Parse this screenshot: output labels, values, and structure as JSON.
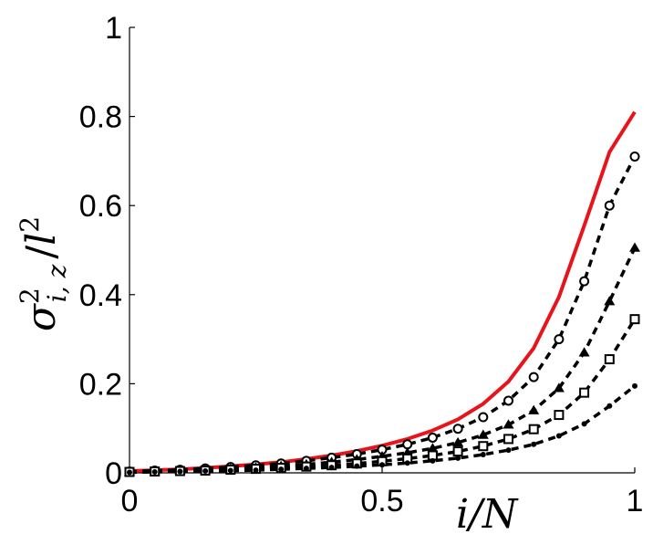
{
  "chart_data": {
    "type": "line",
    "title": "",
    "xlabel": "i/N",
    "ylabel": "σ²_{i,z} / l²",
    "ylabel_parts": {
      "sigma": "σ",
      "sup": "2",
      "sub": "i, z",
      "slash": "/",
      "l": "l",
      "lsup": "2"
    },
    "xlim": [
      0,
      1
    ],
    "ylim": [
      0,
      1
    ],
    "x_ticks": [
      "0",
      "0.5",
      "1"
    ],
    "y_ticks": [
      "0",
      "0.2",
      "0.4",
      "0.6",
      "0.8",
      "1"
    ],
    "grid": false,
    "legend": "none",
    "x": [
      0,
      0.05,
      0.1,
      0.15,
      0.2,
      0.25,
      0.3,
      0.35,
      0.4,
      0.45,
      0.5,
      0.55,
      0.6,
      0.65,
      0.7,
      0.75,
      0.8,
      0.85,
      0.9,
      0.95,
      1.0
    ],
    "series": [
      {
        "style": "solid",
        "color": "#e8141b",
        "marker": "none",
        "values": [
          0.004,
          0.006,
          0.008,
          0.011,
          0.015,
          0.019,
          0.024,
          0.031,
          0.039,
          0.049,
          0.061,
          0.076,
          0.095,
          0.12,
          0.155,
          0.205,
          0.28,
          0.395,
          0.555,
          0.72,
          0.81
        ]
      },
      {
        "style": "dashed",
        "color": "#000000",
        "marker": "open-circle",
        "values": [
          0.003,
          0.005,
          0.007,
          0.01,
          0.013,
          0.017,
          0.021,
          0.027,
          0.034,
          0.042,
          0.052,
          0.064,
          0.079,
          0.099,
          0.125,
          0.162,
          0.215,
          0.3,
          0.43,
          0.6,
          0.71
        ]
      },
      {
        "style": "dashed",
        "color": "#000000",
        "marker": "filled-triangle",
        "values": [
          0.002,
          0.004,
          0.005,
          0.007,
          0.009,
          0.012,
          0.015,
          0.019,
          0.024,
          0.03,
          0.037,
          0.045,
          0.055,
          0.068,
          0.085,
          0.108,
          0.14,
          0.19,
          0.27,
          0.385,
          0.505
        ]
      },
      {
        "style": "dashed",
        "color": "#000000",
        "marker": "open-square",
        "values": [
          0.002,
          0.003,
          0.004,
          0.005,
          0.007,
          0.009,
          0.011,
          0.014,
          0.017,
          0.021,
          0.026,
          0.032,
          0.039,
          0.048,
          0.06,
          0.076,
          0.098,
          0.13,
          0.18,
          0.255,
          0.345
        ]
      },
      {
        "style": "dashed",
        "color": "#000000",
        "marker": "small-dot",
        "values": [
          0.001,
          0.002,
          0.003,
          0.004,
          0.005,
          0.006,
          0.008,
          0.01,
          0.012,
          0.015,
          0.018,
          0.022,
          0.027,
          0.033,
          0.041,
          0.051,
          0.064,
          0.083,
          0.11,
          0.15,
          0.195
        ]
      }
    ]
  }
}
